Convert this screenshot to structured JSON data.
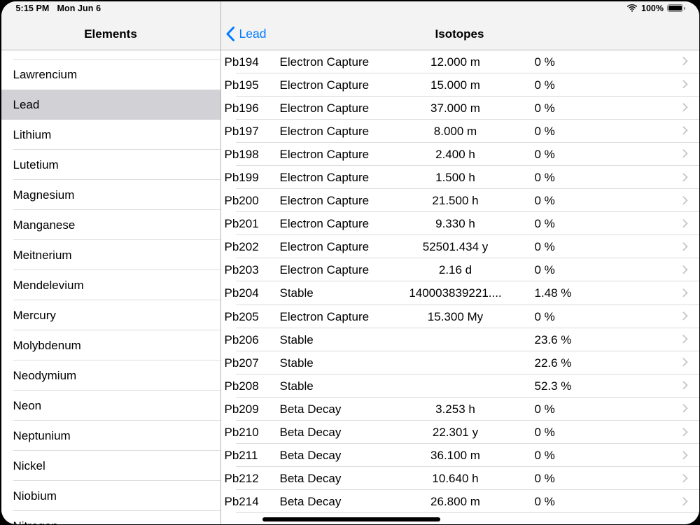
{
  "status_bar": {
    "time": "5:15 PM",
    "date": "Mon Jun 6",
    "battery": "100%"
  },
  "sidebar": {
    "title": "Elements",
    "items": [
      {
        "label": "Lawrencium",
        "selected": false
      },
      {
        "label": "Lead",
        "selected": true
      },
      {
        "label": "Lithium",
        "selected": false
      },
      {
        "label": "Lutetium",
        "selected": false
      },
      {
        "label": "Magnesium",
        "selected": false
      },
      {
        "label": "Manganese",
        "selected": false
      },
      {
        "label": "Meitnerium",
        "selected": false
      },
      {
        "label": "Mendelevium",
        "selected": false
      },
      {
        "label": "Mercury",
        "selected": false
      },
      {
        "label": "Molybdenum",
        "selected": false
      },
      {
        "label": "Neodymium",
        "selected": false
      },
      {
        "label": "Neon",
        "selected": false
      },
      {
        "label": "Neptunium",
        "selected": false
      },
      {
        "label": "Nickel",
        "selected": false
      },
      {
        "label": "Niobium",
        "selected": false
      },
      {
        "label": "Nitrogen",
        "selected": false
      }
    ]
  },
  "detail": {
    "back_label": "Lead",
    "title": "Isotopes",
    "rows": [
      {
        "isotope": "Pb194",
        "decay": "Electron Capture",
        "half_life": "12.000 m",
        "abundance": "0 %"
      },
      {
        "isotope": "Pb195",
        "decay": "Electron Capture",
        "half_life": "15.000 m",
        "abundance": "0 %"
      },
      {
        "isotope": "Pb196",
        "decay": "Electron Capture",
        "half_life": "37.000 m",
        "abundance": "0 %"
      },
      {
        "isotope": "Pb197",
        "decay": "Electron Capture",
        "half_life": "8.000 m",
        "abundance": "0 %"
      },
      {
        "isotope": "Pb198",
        "decay": "Electron Capture",
        "half_life": "2.400 h",
        "abundance": "0 %"
      },
      {
        "isotope": "Pb199",
        "decay": "Electron Capture",
        "half_life": "1.500 h",
        "abundance": "0 %"
      },
      {
        "isotope": "Pb200",
        "decay": "Electron Capture",
        "half_life": "21.500 h",
        "abundance": "0 %"
      },
      {
        "isotope": "Pb201",
        "decay": "Electron Capture",
        "half_life": "9.330 h",
        "abundance": "0 %"
      },
      {
        "isotope": "Pb202",
        "decay": "Electron Capture",
        "half_life": "52501.434 y",
        "abundance": "0 %"
      },
      {
        "isotope": "Pb203",
        "decay": "Electron Capture",
        "half_life": "2.16 d",
        "abundance": "0 %"
      },
      {
        "isotope": "Pb204",
        "decay": "Stable",
        "half_life": "140003839221....",
        "abundance": "1.48 %"
      },
      {
        "isotope": "Pb205",
        "decay": "Electron Capture",
        "half_life": "15.300 My",
        "abundance": "0 %"
      },
      {
        "isotope": "Pb206",
        "decay": "Stable",
        "half_life": "",
        "abundance": "23.6 %"
      },
      {
        "isotope": "Pb207",
        "decay": "Stable",
        "half_life": "",
        "abundance": "22.6 %"
      },
      {
        "isotope": "Pb208",
        "decay": "Stable",
        "half_life": "",
        "abundance": "52.3 %"
      },
      {
        "isotope": "Pb209",
        "decay": "Beta Decay",
        "half_life": "3.253 h",
        "abundance": "0 %"
      },
      {
        "isotope": "Pb210",
        "decay": "Beta Decay",
        "half_life": "22.301 y",
        "abundance": "0 %"
      },
      {
        "isotope": "Pb211",
        "decay": "Beta Decay",
        "half_life": "36.100 m",
        "abundance": "0 %"
      },
      {
        "isotope": "Pb212",
        "decay": "Beta Decay",
        "half_life": "10.640 h",
        "abundance": "0 %"
      },
      {
        "isotope": "Pb214",
        "decay": "Beta Decay",
        "half_life": "26.800 m",
        "abundance": "0 %"
      }
    ]
  },
  "colors": {
    "accent": "#007aff",
    "header_bg": "#f4f3f4",
    "selected_bg": "#d1d1d6",
    "separator": "#dcdcdd",
    "divider": "#b2b2b4",
    "chevron": "#c5c5c9"
  }
}
